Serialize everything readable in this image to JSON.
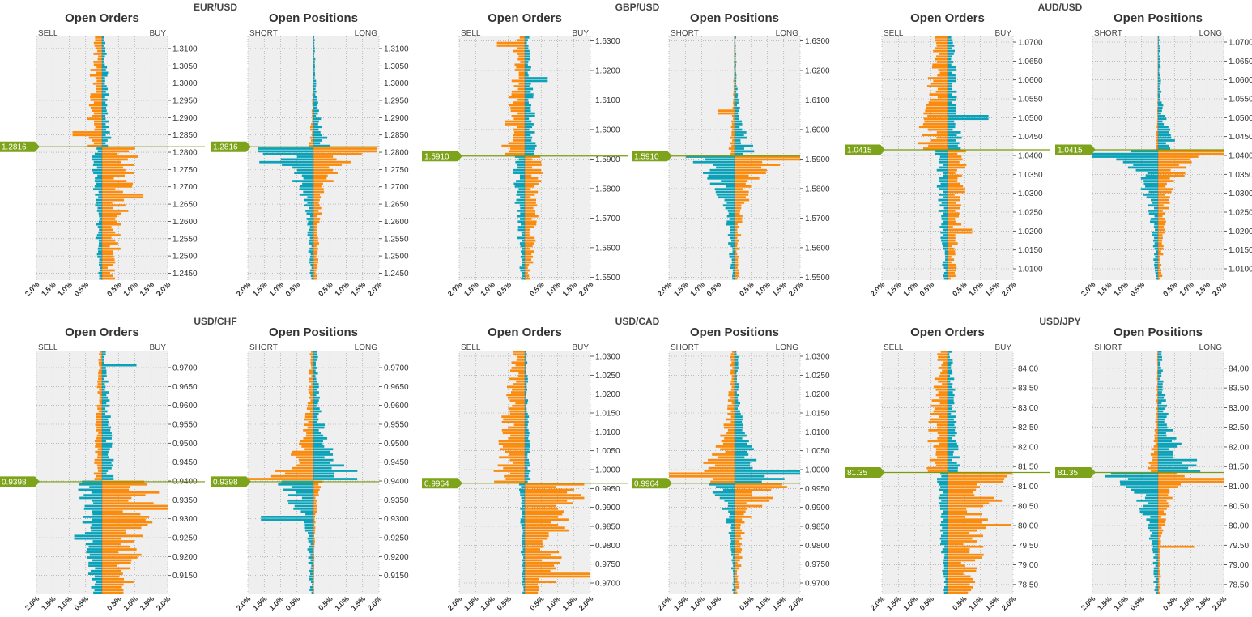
{
  "colors": {
    "buy": "#0aa2b8",
    "sell": "#fb8b0c",
    "current_line": "#7a9a10",
    "grid_bg": "#efefef",
    "tag_bg": "#7da31a"
  },
  "legend": {
    "sell": "SELL",
    "buy": "BUY",
    "short": "SHORT",
    "long": "LONG"
  },
  "panel_titles": {
    "orders": "Open Orders",
    "positions": "Open Positions"
  },
  "xticks": [
    "2.0%",
    "1.5%",
    "1.0%",
    "0.5%",
    "0.5%",
    "1.0%",
    "1.5%",
    "2.0%"
  ],
  "chart_data": [
    {
      "pair": "EUR/USD",
      "type": "bar",
      "orientation": "horizontal-diverging",
      "current_price": "1.2816",
      "current": 1.2816,
      "ylim": [
        1.243,
        1.3135
      ],
      "yticks": [
        "1.3100",
        "1.3050",
        "1.3000",
        "1.2950",
        "1.2900",
        "1.2850",
        "1.2800",
        "1.2750",
        "1.2700",
        "1.2650",
        "1.2600",
        "1.2550",
        "1.2500",
        "1.2450"
      ],
      "xlim": [
        -2.0,
        2.0
      ],
      "orders": {
        "above": {
          "left_peak": 0.6,
          "right_peak": 0.3,
          "left_spike": [
            1.285,
            0.9
          ]
        },
        "below": {
          "left_peak": 0.35,
          "right_peak": 1.2,
          "right_spike": [
            1.2675,
            1.25
          ]
        }
      },
      "positions": {
        "above": {
          "left_peak": 0.2,
          "right_peak": 0.6
        },
        "below": {
          "left_peak": 2.0,
          "right_peak": 2.0,
          "left_spike": [
            1.277,
            1.65
          ]
        },
        "near": {
          "right_spike": [
            1.2805,
            1.95
          ]
        }
      }
    },
    {
      "pair": "GBP/USD",
      "type": "bar",
      "orientation": "horizontal-diverging",
      "current_price": "1.5910",
      "current": 1.591,
      "ylim": [
        1.549,
        1.6315
      ],
      "yticks": [
        "1.6300",
        "1.6200",
        "1.6100",
        "1.6000",
        "1.5900",
        "1.5800",
        "1.5700",
        "1.5600",
        "1.5500"
      ],
      "xlim": [
        -2.0,
        2.0
      ],
      "orders": {
        "above": {
          "left_peak": 0.75,
          "right_peak": 0.4,
          "left_spike": [
            1.629,
            0.85
          ],
          "right_spike": [
            1.6165,
            0.7
          ]
        },
        "below": {
          "left_peak": 0.4,
          "right_peak": 0.6
        }
      },
      "positions": {
        "above": {
          "left_peak": 0.3,
          "right_peak": 0.8,
          "left_spike": [
            1.606,
            0.5
          ]
        },
        "below": {
          "left_peak": 2.0,
          "right_peak": 1.9
        },
        "near": {
          "right_spike": [
            1.5905,
            2.0
          ]
        }
      }
    },
    {
      "pair": "AUD/USD",
      "type": "bar",
      "orientation": "horizontal-diverging",
      "current_price": "1.0415",
      "current": 1.0415,
      "ylim": [
        1.007,
        1.0715
      ],
      "yticks": [
        "1.0700",
        "1.0650",
        "1.0600",
        "1.0550",
        "1.0500",
        "1.0450",
        "1.0400",
        "1.0350",
        "1.0300",
        "1.0250",
        "1.0200",
        "1.0150",
        "1.0100"
      ],
      "xlim": [
        -2.0,
        2.0
      ],
      "orders": {
        "above": {
          "left_peak": 1.0,
          "right_peak": 0.5,
          "right_spike": [
            1.05,
            1.25
          ]
        },
        "below": {
          "left_peak": 0.4,
          "right_peak": 0.7,
          "right_spike": [
            1.02,
            0.75
          ]
        }
      },
      "positions": {
        "above": {
          "left_peak": 0.1,
          "right_peak": 0.8
        },
        "below": {
          "left_peak": 2.0,
          "right_peak": 2.0,
          "left_spike": [
            1.04,
            2.0
          ]
        },
        "near": {
          "right_spike": [
            1.0405,
            2.0
          ]
        }
      }
    },
    {
      "pair": "USD/CHF",
      "type": "bar",
      "orientation": "horizontal-diverging",
      "current_price": "0.9398",
      "current": 0.9398,
      "ylim": [
        0.91,
        0.9745
      ],
      "yticks": [
        "0.9700",
        "0.9650",
        "0.9600",
        "0.9550",
        "0.9500",
        "0.9450",
        "0.9400",
        "0.9350",
        "0.9300",
        "0.9250",
        "0.9200",
        "0.9150"
      ],
      "xlim": [
        -2.0,
        2.0
      ],
      "orders": {
        "above": {
          "left_peak": 0.3,
          "right_peak": 0.4,
          "right_spike": [
            0.9705,
            1.05
          ]
        },
        "below": {
          "left_peak": 0.8,
          "right_peak": 2.0,
          "left_spike": [
            0.925,
            0.85
          ],
          "right_spike": [
            0.933,
            2.0
          ]
        }
      },
      "positions": {
        "above": {
          "left_peak": 1.8,
          "right_peak": 2.0
        },
        "below": {
          "left_peak": 1.6,
          "right_peak": 0.3,
          "left_spike": [
            0.93,
            1.6
          ]
        },
        "near": {
          "left_spike": [
            0.9405,
            2.0
          ]
        }
      }
    },
    {
      "pair": "USD/CAD",
      "type": "bar",
      "orientation": "horizontal-diverging",
      "current_price": "0.9964",
      "current": 0.9964,
      "ylim": [
        0.967,
        1.0315
      ],
      "yticks": [
        "1.0300",
        "1.0250",
        "1.0200",
        "1.0150",
        "1.0100",
        "1.0050",
        "1.0000",
        "0.9950",
        "0.9900",
        "0.9850",
        "0.9800",
        "0.9750",
        "0.9700"
      ],
      "xlim": [
        -2.0,
        2.0
      ],
      "orders": {
        "above": {
          "left_peak": 1.1,
          "right_peak": 0.2
        },
        "below": {
          "left_peak": 0.2,
          "right_peak": 2.0,
          "right_spike": [
            0.972,
            2.0
          ]
        }
      },
      "positions": {
        "above": {
          "left_peak": 2.0,
          "right_peak": 1.9
        },
        "below": {
          "left_peak": 1.0,
          "right_peak": 2.0
        },
        "near": {
          "left_spike": [
            0.9985,
            2.0
          ],
          "right_spike": [
            0.9995,
            2.0
          ]
        }
      }
    },
    {
      "pair": "USD/JPY",
      "type": "bar",
      "orientation": "horizontal-diverging",
      "current_price": "81.35",
      "current": 81.35,
      "ylim": [
        78.25,
        84.45
      ],
      "yticks": [
        "84.00",
        "83.50",
        "83.00",
        "82.50",
        "82.00",
        "81.50",
        "81.00",
        "80.50",
        "80.00",
        "79.50",
        "79.00",
        "78.50"
      ],
      "xlim": [
        -2.0,
        2.0
      ],
      "orders": {
        "above": {
          "left_peak": 0.8,
          "right_peak": 0.4
        },
        "below": {
          "left_peak": 0.35,
          "right_peak": 2.0,
          "right_spike": [
            80.0,
            1.95
          ]
        }
      },
      "positions": {
        "above": {
          "left_peak": 0.5,
          "right_peak": 2.0
        },
        "below": {
          "left_peak": 2.0,
          "right_peak": 1.1,
          "right_spike": [
            79.45,
            1.1
          ]
        },
        "near": {
          "right_spike": [
            81.15,
            2.0
          ]
        }
      }
    }
  ]
}
